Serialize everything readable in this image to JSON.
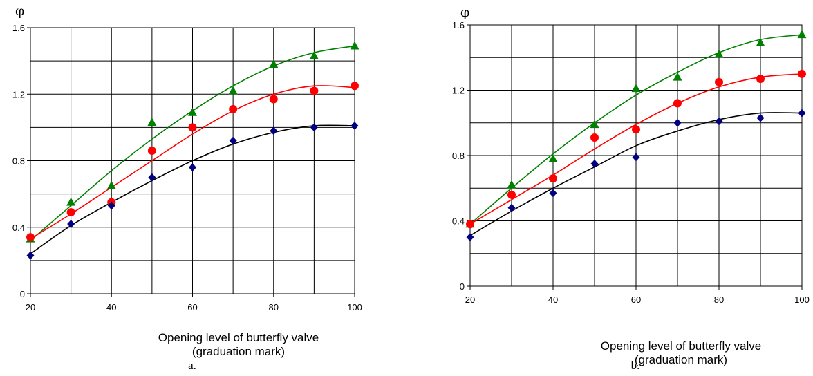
{
  "chart_data": [
    {
      "type": "scatter",
      "panel": "a",
      "caption": "a.",
      "ylabel": "φ",
      "xlabel": [
        "Opening level of butterfly valve",
        "(graduation mark)"
      ],
      "xlim": [
        20,
        100
      ],
      "ylim": [
        0,
        1.6
      ],
      "x_ticks": [
        20,
        40,
        60,
        80,
        100
      ],
      "y_ticks": [
        0,
        0.4,
        0.8,
        1.2,
        1.6
      ],
      "y_tick_labels": [
        "0",
        "0.4",
        "0.8",
        "1.2",
        "1.6"
      ],
      "grid": {
        "x_step": 10,
        "y_step": 0.2
      },
      "series": [
        {
          "marker": "triangle",
          "color": "#008000",
          "x": [
            20,
            30,
            40,
            50,
            60,
            70,
            80,
            90,
            100
          ],
          "points": [
            0.33,
            0.55,
            0.65,
            1.03,
            1.09,
            1.22,
            1.38,
            1.43,
            1.49
          ],
          "fit": [
            0.32,
            0.53,
            0.74,
            0.93,
            1.1,
            1.25,
            1.37,
            1.45,
            1.49
          ]
        },
        {
          "marker": "circle",
          "color": "#ff0000",
          "fit_color": "#ff0000",
          "x": [
            20,
            30,
            40,
            50,
            60,
            70,
            80,
            90,
            100
          ],
          "points": [
            0.34,
            0.49,
            0.55,
            0.86,
            1.0,
            1.11,
            1.17,
            1.22,
            1.25
          ],
          "fit": [
            0.33,
            0.48,
            0.64,
            0.8,
            0.96,
            1.1,
            1.2,
            1.25,
            1.24
          ]
        },
        {
          "marker": "diamond",
          "color": "#000080",
          "fit_color": "#000000",
          "x": [
            20,
            30,
            40,
            50,
            60,
            70,
            80,
            90,
            100
          ],
          "points": [
            0.23,
            0.42,
            0.53,
            0.7,
            0.76,
            0.92,
            0.98,
            1.0,
            1.01
          ],
          "fit": [
            0.24,
            0.41,
            0.55,
            0.68,
            0.8,
            0.9,
            0.97,
            1.01,
            1.01
          ]
        }
      ]
    },
    {
      "type": "scatter",
      "panel": "b",
      "caption": "b.",
      "ylabel": "φ",
      "xlabel": [
        "Opening level of butterfly valve",
        "(graduation mark)"
      ],
      "xlim": [
        20,
        100
      ],
      "ylim": [
        0,
        1.6
      ],
      "x_ticks": [
        20,
        40,
        60,
        80,
        100
      ],
      "y_ticks": [
        0,
        0.4,
        0.8,
        1.2,
        1.6
      ],
      "y_tick_labels": [
        "0",
        "0.4",
        "0.8",
        "1.2",
        "1.6"
      ],
      "grid": {
        "x_step": 10,
        "y_step": 0.2
      },
      "series": [
        {
          "marker": "triangle",
          "color": "#008000",
          "x": [
            20,
            30,
            40,
            50,
            60,
            70,
            80,
            90,
            100
          ],
          "points": [
            0.38,
            0.62,
            0.78,
            0.99,
            1.21,
            1.28,
            1.42,
            1.49,
            1.54
          ],
          "fit": [
            0.38,
            0.6,
            0.81,
            1.0,
            1.17,
            1.31,
            1.43,
            1.51,
            1.54
          ]
        },
        {
          "marker": "circle",
          "color": "#ff0000",
          "fit_color": "#ff0000",
          "x": [
            20,
            30,
            40,
            50,
            60,
            70,
            80,
            90,
            100
          ],
          "points": [
            0.38,
            0.56,
            0.66,
            0.91,
            0.96,
            1.12,
            1.25,
            1.27,
            1.3
          ],
          "fit": [
            0.38,
            0.53,
            0.68,
            0.84,
            0.99,
            1.12,
            1.22,
            1.28,
            1.3
          ]
        },
        {
          "marker": "diamond",
          "color": "#000080",
          "fit_color": "#000000",
          "x": [
            20,
            30,
            40,
            50,
            60,
            70,
            80,
            90,
            100
          ],
          "points": [
            0.3,
            0.48,
            0.57,
            0.75,
            0.79,
            1.0,
            1.01,
            1.03,
            1.06
          ],
          "fit": [
            0.31,
            0.46,
            0.6,
            0.73,
            0.86,
            0.95,
            1.02,
            1.06,
            1.06
          ]
        }
      ]
    }
  ]
}
